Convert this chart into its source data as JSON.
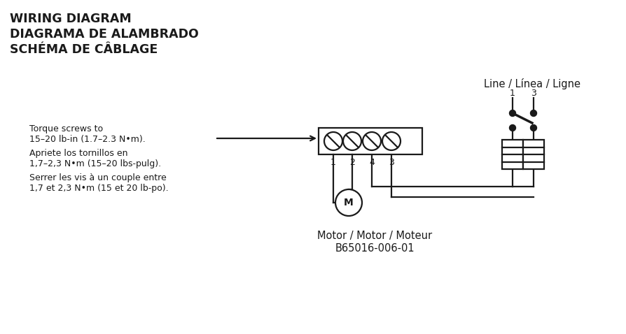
{
  "bg_color": "#ffffff",
  "text_color": "#1a1a1a",
  "lc": "#1a1a1a",
  "title_lines": [
    "WIRING DIAGRAM",
    "DIAGRAMA DE ALAMBRADO",
    "SCHÉMA DE CÂBLAGE"
  ],
  "title_fontsize": 12.5,
  "title_fontweight": "bold",
  "label_line": "Line / Línea / Ligne",
  "label_motor": "Motor / Motor / Moteur",
  "label_model": "B65016-006-01",
  "torque_lines": [
    "Torque screws to",
    "15–20 lb-in (1.7–2.3 N•m).",
    "Apriete los tornillos en",
    "1,7–2,3 N•m (15–20 lbs-pulg).",
    "Serrer les vis à un couple entre",
    "1,7 et 2,3 N•m (15 et 20 lb-po)."
  ],
  "torque_fontsize": 9,
  "lw": 1.6
}
